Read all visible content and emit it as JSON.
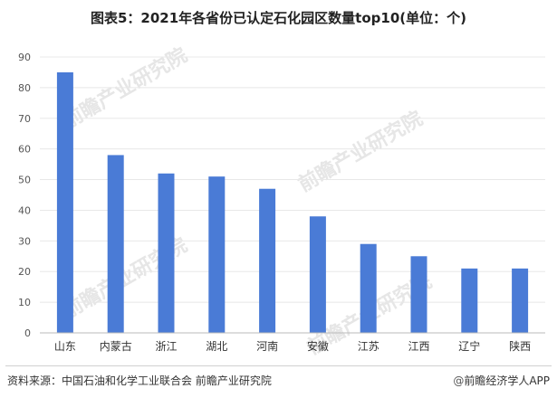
{
  "title": "图表5：2021年各省份已认定石化园区数量top10(单位：个)",
  "source": "资料来源：中国石油和化学工业联合会 前瞻产业研究院",
  "brand": "前瞻经济学人APP",
  "brand_icon": "at-icon",
  "watermark": "前瞻产业研究院",
  "colors": {
    "bar": "#4a7bd6",
    "grid": "#e8e8e8",
    "axis": "#bbbbbb",
    "text": "#555555"
  },
  "chart_data": {
    "type": "bar",
    "title": "图表5：2021年各省份已认定石化园区数量top10(单位：个)",
    "categories": [
      "山东",
      "内蒙古",
      "浙江",
      "湖北",
      "河南",
      "安徽",
      "江苏",
      "江西",
      "辽宁",
      "陕西"
    ],
    "values": [
      85,
      58,
      52,
      51,
      47,
      38,
      29,
      25,
      21,
      21
    ],
    "ylim": [
      0,
      90
    ],
    "yticks": [
      0,
      10,
      20,
      30,
      40,
      50,
      60,
      70,
      80,
      90
    ],
    "grid": true,
    "legend": "none"
  }
}
